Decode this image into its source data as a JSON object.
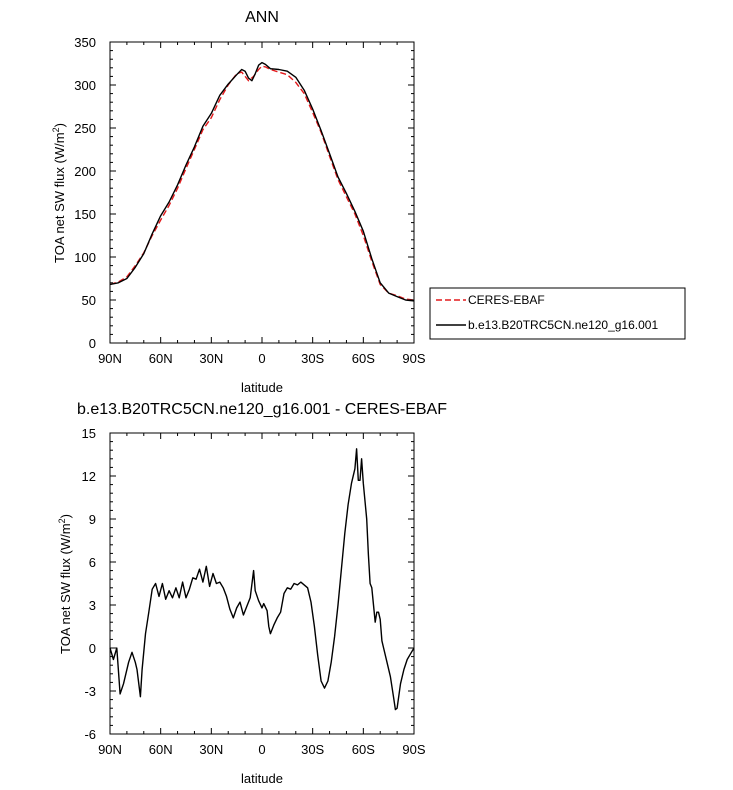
{
  "chart_data": [
    {
      "type": "line",
      "title": "ANN",
      "xlabel": "latitude",
      "ylabel": "TOA net SW flux (W/m²)",
      "ylabel_main": "TOA net SW flux (W/m",
      "ylabel_sup": "2",
      "ylabel_tail": ")",
      "xlim": [
        -90,
        90
      ],
      "ylim": [
        0,
        350
      ],
      "x_ticks": [
        -90,
        -60,
        -30,
        0,
        30,
        60,
        90
      ],
      "x_tick_labels": [
        "90N",
        "60N",
        "30N",
        "0",
        "30S",
        "60S",
        "90S"
      ],
      "y_ticks": [
        0,
        50,
        100,
        150,
        200,
        250,
        300,
        350
      ],
      "y_tick_labels": [
        "0",
        "50",
        "100",
        "150",
        "200",
        "250",
        "300",
        "350"
      ],
      "legend_placement": "right",
      "series": [
        {
          "name": "CERES-EBAF",
          "color": "#e31a1c",
          "dash": "dashed",
          "points": [
            [
              -90,
              68
            ],
            [
              -85,
              71
            ],
            [
              -80,
              77
            ],
            [
              -75,
              90
            ],
            [
              -70,
              105
            ],
            [
              -65,
              125
            ],
            [
              -60,
              143
            ],
            [
              -55,
              160
            ],
            [
              -50,
              180
            ],
            [
              -45,
              203
            ],
            [
              -40,
              225
            ],
            [
              -35,
              248
            ],
            [
              -30,
              262
            ],
            [
              -25,
              283
            ],
            [
              -20,
              300
            ],
            [
              -15,
              313
            ],
            [
              -12,
              315
            ],
            [
              -8,
              305
            ],
            [
              -5,
              310
            ],
            [
              -2,
              318
            ],
            [
              0,
              322
            ],
            [
              2,
              321
            ],
            [
              5,
              318
            ],
            [
              10,
              315
            ],
            [
              15,
              312
            ],
            [
              20,
              303
            ],
            [
              25,
              290
            ],
            [
              30,
              268
            ],
            [
              35,
              245
            ],
            [
              40,
              217
            ],
            [
              45,
              190
            ],
            [
              50,
              170
            ],
            [
              55,
              150
            ],
            [
              60,
              125
            ],
            [
              65,
              95
            ],
            [
              70,
              68
            ],
            [
              75,
              58
            ],
            [
              80,
              55
            ],
            [
              85,
              51
            ],
            [
              90,
              50
            ]
          ]
        },
        {
          "name": "b.e13.B20TRC5CN.ne120_g16.001",
          "color": "#000000",
          "dash": "solid",
          "points": [
            [
              -90,
              68
            ],
            [
              -85,
              70
            ],
            [
              -80,
              75
            ],
            [
              -75,
              88
            ],
            [
              -70,
              104
            ],
            [
              -65,
              127
            ],
            [
              -60,
              148
            ],
            [
              -55,
              164
            ],
            [
              -50,
              184
            ],
            [
              -45,
              207
            ],
            [
              -40,
              228
            ],
            [
              -35,
              252
            ],
            [
              -30,
              267
            ],
            [
              -25,
              288
            ],
            [
              -20,
              301
            ],
            [
              -15,
              312
            ],
            [
              -12,
              318
            ],
            [
              -10,
              316
            ],
            [
              -8,
              308
            ],
            [
              -6,
              305
            ],
            [
              -4,
              313
            ],
            [
              -2,
              323
            ],
            [
              0,
              326
            ],
            [
              2,
              324
            ],
            [
              5,
              319
            ],
            [
              10,
              318
            ],
            [
              15,
              316
            ],
            [
              20,
              309
            ],
            [
              25,
              294
            ],
            [
              30,
              272
            ],
            [
              35,
              247
            ],
            [
              40,
              220
            ],
            [
              45,
              193
            ],
            [
              50,
              174
            ],
            [
              55,
              153
            ],
            [
              60,
              130
            ],
            [
              65,
              98
            ],
            [
              70,
              70
            ],
            [
              75,
              58
            ],
            [
              80,
              54
            ],
            [
              85,
              50
            ],
            [
              90,
              49
            ]
          ]
        }
      ]
    },
    {
      "type": "line",
      "title": "b.e13.B20TRC5CN.ne120_g16.001 - CERES-EBAF",
      "xlabel": "latitude",
      "ylabel": "TOA net SW flux (W/m²)",
      "ylabel_main": "TOA net SW flux (W/m",
      "ylabel_sup": "2",
      "ylabel_tail": ")",
      "xlim": [
        -90,
        90
      ],
      "ylim": [
        -6,
        15
      ],
      "x_ticks": [
        -90,
        -60,
        -30,
        0,
        30,
        60,
        90
      ],
      "x_tick_labels": [
        "90N",
        "60N",
        "30N",
        "0",
        "30S",
        "60S",
        "90S"
      ],
      "y_ticks": [
        -6,
        -3,
        0,
        3,
        6,
        9,
        12,
        15
      ],
      "y_tick_labels": [
        "-6",
        "-3",
        "0",
        "3",
        "6",
        "9",
        "12",
        "15"
      ],
      "series": [
        {
          "color": "#000000",
          "dash": "solid",
          "points": [
            [
              -90,
              0
            ],
            [
              -88,
              -0.8
            ],
            [
              -86,
              0
            ],
            [
              -84,
              -3.2
            ],
            [
              -82,
              -2.5
            ],
            [
              -79,
              -1
            ],
            [
              -77,
              -0.3
            ],
            [
              -75,
              -1
            ],
            [
              -74,
              -1.5
            ],
            [
              -72,
              -3.4
            ],
            [
              -71,
              -1.5
            ],
            [
              -69,
              1
            ],
            [
              -67,
              2.5
            ],
            [
              -65,
              4.1
            ],
            [
              -63,
              4.5
            ],
            [
              -61,
              3.6
            ],
            [
              -59,
              4.5
            ],
            [
              -57,
              3.4
            ],
            [
              -55,
              4
            ],
            [
              -53,
              3.5
            ],
            [
              -51,
              4.2
            ],
            [
              -49,
              3.5
            ],
            [
              -47,
              4.6
            ],
            [
              -45,
              3.5
            ],
            [
              -43,
              4.1
            ],
            [
              -41,
              4.9
            ],
            [
              -39,
              4.8
            ],
            [
              -37,
              5.5
            ],
            [
              -35,
              4.6
            ],
            [
              -33,
              5.7
            ],
            [
              -31,
              4.3
            ],
            [
              -29,
              5.2
            ],
            [
              -27,
              4.5
            ],
            [
              -25,
              4.6
            ],
            [
              -23,
              4.2
            ],
            [
              -21,
              3.6
            ],
            [
              -19,
              2.7
            ],
            [
              -17,
              2.1
            ],
            [
              -15,
              2.8
            ],
            [
              -13,
              3.2
            ],
            [
              -11,
              2.3
            ],
            [
              -9,
              2.9
            ],
            [
              -7,
              3.5
            ],
            [
              -5,
              5.4
            ],
            [
              -4,
              4
            ],
            [
              -2,
              3.3
            ],
            [
              0,
              2.8
            ],
            [
              1,
              3.1
            ],
            [
              3,
              2.6
            ],
            [
              4,
              1.5
            ],
            [
              5,
              1
            ],
            [
              7,
              1.6
            ],
            [
              9,
              2.1
            ],
            [
              11,
              2.5
            ],
            [
              13,
              3.8
            ],
            [
              15,
              4.2
            ],
            [
              17,
              4.1
            ],
            [
              19,
              4.5
            ],
            [
              21,
              4.4
            ],
            [
              23,
              4.6
            ],
            [
              25,
              4.4
            ],
            [
              27,
              4.2
            ],
            [
              29,
              3.2
            ],
            [
              31,
              1.5
            ],
            [
              33,
              -0.5
            ],
            [
              35,
              -2.3
            ],
            [
              37,
              -2.8
            ],
            [
              39,
              -2.3
            ],
            [
              41,
              -1
            ],
            [
              43,
              0.8
            ],
            [
              45,
              3
            ],
            [
              47,
              5.5
            ],
            [
              49,
              8
            ],
            [
              51,
              10
            ],
            [
              53,
              11.5
            ],
            [
              55,
              12.5
            ],
            [
              56,
              13.9
            ],
            [
              57,
              11.7
            ],
            [
              58,
              11.7
            ],
            [
              59,
              13.2
            ],
            [
              60,
              11.5
            ],
            [
              62,
              9
            ],
            [
              63,
              6.5
            ],
            [
              64,
              4.5
            ],
            [
              65,
              4.2
            ],
            [
              66,
              3
            ],
            [
              67,
              1.8
            ],
            [
              68,
              2.5
            ],
            [
              69,
              2.5
            ],
            [
              70,
              2
            ],
            [
              71,
              0.5
            ],
            [
              72,
              0
            ],
            [
              74,
              -1
            ],
            [
              76,
              -2
            ],
            [
              78,
              -3.5
            ],
            [
              79,
              -4.3
            ],
            [
              80,
              -4.2
            ],
            [
              82,
              -2.5
            ],
            [
              84,
              -1.5
            ],
            [
              86,
              -0.8
            ],
            [
              88,
              -0.4
            ],
            [
              90,
              0
            ]
          ]
        }
      ]
    }
  ]
}
